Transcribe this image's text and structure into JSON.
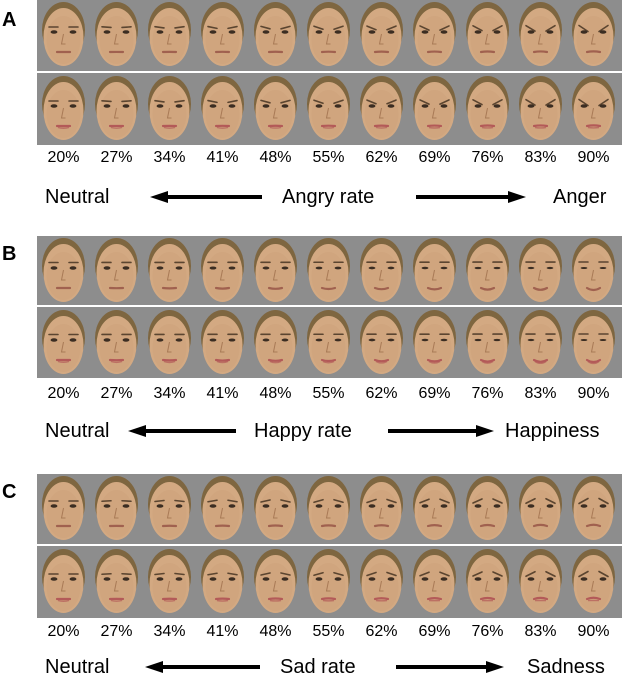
{
  "percent_labels": [
    "20%",
    "27%",
    "34%",
    "41%",
    "48%",
    "55%",
    "62%",
    "69%",
    "76%",
    "83%",
    "90%"
  ],
  "colors": {
    "background": "#8d8d8d",
    "skin": "#d3a982",
    "hair": "#7e6640"
  },
  "panels": [
    {
      "letter": "A",
      "left_label": "Neutral",
      "center_label": "Angry rate",
      "right_label": "Anger",
      "expression": "anger"
    },
    {
      "letter": "B",
      "left_label": "Neutral",
      "center_label": "Happy rate",
      "right_label": "Happiness",
      "expression": "happy"
    },
    {
      "letter": "C",
      "left_label": "Neutral",
      "center_label": "Sad rate",
      "right_label": "Sadness",
      "expression": "sad"
    }
  ]
}
